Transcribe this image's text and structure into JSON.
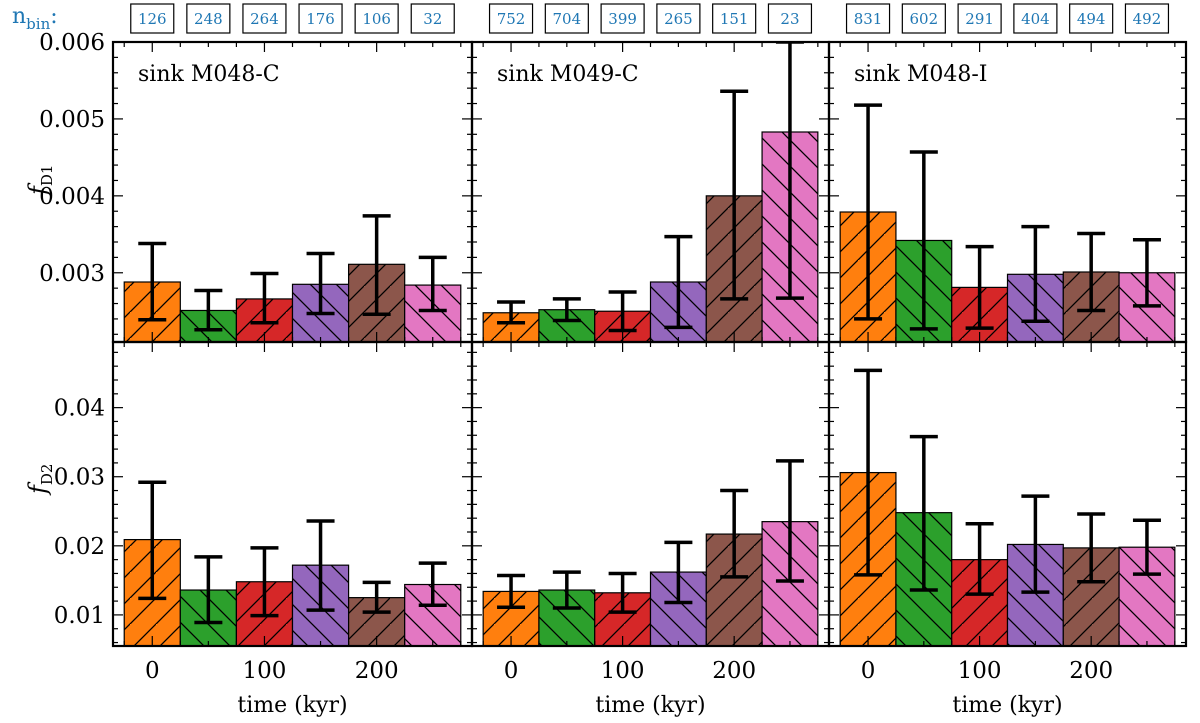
{
  "nbin_label": "n",
  "nbin_label_sub": "bin",
  "nbin_label_colon": ":",
  "xlabel": "time (kyr)",
  "ylabels": [
    {
      "main": "f",
      "sub": "D1"
    },
    {
      "main": "f",
      "sub": "D2"
    }
  ],
  "colors": {
    "bars": [
      "#ff7f0e",
      "#2ca02c",
      "#d62728",
      "#9467bd",
      "#8c564b",
      "#e377c2"
    ],
    "nbin_text": "#1f77b4"
  },
  "chart_data": {
    "type": "bar",
    "layout": "2 rows x 3 columns, shared axes",
    "hatch": [
      "/",
      "\\",
      "/",
      "\\",
      "/",
      "\\"
    ],
    "x": [
      0,
      50,
      100,
      150,
      200,
      250
    ],
    "bar_width": 50,
    "xlim": [
      -35,
      285
    ],
    "xticks": [
      0,
      100,
      200
    ],
    "xticklabels": [
      "0",
      "100",
      "200"
    ],
    "rows": [
      {
        "ylabel": "f_D1",
        "ylim": [
          0.0021,
          0.006
        ],
        "yticks": [
          0.003,
          0.004,
          0.005,
          0.006
        ],
        "yticklabels": [
          "0.003",
          "0.004",
          "0.005",
          "0.006"
        ]
      },
      {
        "ylabel": "f_D2",
        "ylim": [
          0.0055,
          0.0495
        ],
        "yticks": [
          0.01,
          0.02,
          0.03,
          0.04
        ],
        "yticklabels": [
          "0.01",
          "0.02",
          "0.03",
          "0.04"
        ]
      }
    ],
    "panels": [
      {
        "title": "sink M048-C",
        "nbin": [
          "126",
          "248",
          "264",
          "176",
          "106",
          "32"
        ],
        "fD1": {
          "values": [
            0.00288,
            0.00251,
            0.00266,
            0.00285,
            0.00311,
            0.00284
          ],
          "err_low": [
            0.00239,
            0.00226,
            0.00235,
            0.00247,
            0.00246,
            0.00251
          ],
          "err_high": [
            0.00338,
            0.00277,
            0.00299,
            0.00325,
            0.00374,
            0.0032
          ]
        },
        "fD2": {
          "values": [
            0.0209,
            0.0136,
            0.0148,
            0.0172,
            0.0125,
            0.0144
          ],
          "err_low": [
            0.0124,
            0.0089,
            0.0099,
            0.0107,
            0.0104,
            0.0114
          ],
          "err_high": [
            0.0292,
            0.0184,
            0.0197,
            0.0236,
            0.0147,
            0.0175
          ]
        }
      },
      {
        "title": "sink M049-C",
        "nbin": [
          "752",
          "704",
          "399",
          "265",
          "151",
          "23"
        ],
        "fD1": {
          "values": [
            0.00248,
            0.00252,
            0.0025,
            0.00288,
            0.004,
            0.00483
          ],
          "err_low": [
            0.00235,
            0.00238,
            0.00225,
            0.00229,
            0.00266,
            0.00267
          ],
          "err_high": [
            0.00262,
            0.00266,
            0.00275,
            0.00347,
            0.00536,
            0.006
          ]
        },
        "fD2": {
          "values": [
            0.0134,
            0.0136,
            0.0132,
            0.0162,
            0.0217,
            0.0235
          ],
          "err_low": [
            0.0111,
            0.011,
            0.0104,
            0.0118,
            0.0155,
            0.0149
          ],
          "err_high": [
            0.0157,
            0.0162,
            0.016,
            0.0205,
            0.028,
            0.0323
          ]
        }
      },
      {
        "title": "sink M048-I",
        "nbin": [
          "831",
          "602",
          "291",
          "404",
          "494",
          "492"
        ],
        "fD1": {
          "values": [
            0.00379,
            0.00342,
            0.00281,
            0.00298,
            0.00301,
            0.003
          ],
          "err_low": [
            0.0024,
            0.00227,
            0.00228,
            0.00237,
            0.00251,
            0.00257
          ],
          "err_high": [
            0.00518,
            0.00457,
            0.00334,
            0.0036,
            0.00351,
            0.00343
          ]
        },
        "fD2": {
          "values": [
            0.0306,
            0.0248,
            0.018,
            0.0202,
            0.0197,
            0.0198
          ],
          "err_low": [
            0.0158,
            0.0136,
            0.013,
            0.0133,
            0.0148,
            0.0159
          ],
          "err_high": [
            0.0454,
            0.0358,
            0.0232,
            0.0272,
            0.0246,
            0.0237
          ]
        }
      }
    ]
  }
}
